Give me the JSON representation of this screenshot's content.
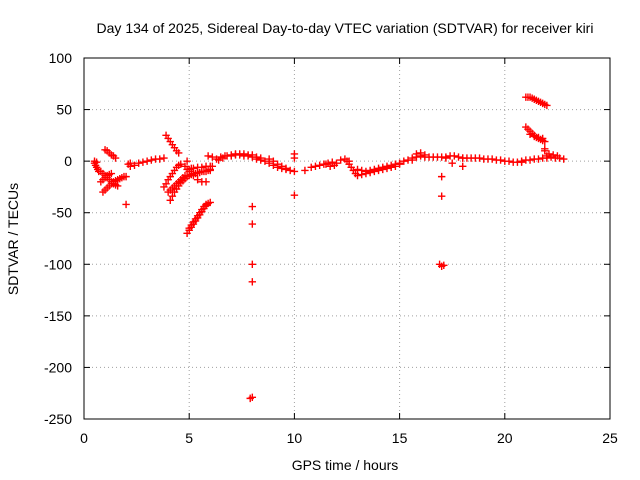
{
  "chart_data": {
    "type": "scatter",
    "title": "Day 134 of 2025, Sidereal Day-to-day VTEC variation (SDTVAR) for receiver kiri",
    "xlabel": "GPS time / hours",
    "ylabel": "SDTVAR / TECUs",
    "xlim": [
      0,
      25
    ],
    "ylim": [
      -250,
      100
    ],
    "xticks": [
      0,
      5,
      10,
      15,
      20,
      25
    ],
    "xtick_labels": [
      "0",
      "5",
      "10",
      "15",
      "20",
      "25"
    ],
    "yticks": [
      -250,
      -200,
      -150,
      -100,
      -50,
      0,
      50,
      100
    ],
    "ytick_labels": [
      "-250",
      "-200",
      "-150",
      "-100",
      "-50",
      "0",
      "50",
      "100"
    ],
    "grid": true,
    "marker": "+",
    "color": "#ff0000",
    "series": [
      {
        "name": "SDTVAR",
        "points": [
          [
            0.5,
            -2
          ],
          [
            0.55,
            -4
          ],
          [
            0.6,
            -6
          ],
          [
            0.65,
            -8
          ],
          [
            0.7,
            -10
          ],
          [
            0.5,
            0
          ],
          [
            0.6,
            -1
          ],
          [
            0.9,
            -30
          ],
          [
            1.0,
            -28
          ],
          [
            1.1,
            -26
          ],
          [
            1.2,
            -24
          ],
          [
            1.3,
            -22
          ],
          [
            1.4,
            -20
          ],
          [
            1.5,
            -19
          ],
          [
            1.6,
            -18
          ],
          [
            1.7,
            -17
          ],
          [
            1.8,
            -16
          ],
          [
            1.9,
            -15
          ],
          [
            2.0,
            -15
          ],
          [
            0.8,
            -20
          ],
          [
            0.9,
            -18
          ],
          [
            1.0,
            -16
          ],
          [
            1.1,
            -14
          ],
          [
            1.2,
            -13
          ],
          [
            1.3,
            -12
          ],
          [
            0.8,
            -10
          ],
          [
            0.9,
            -12
          ],
          [
            1.0,
            -14
          ],
          [
            1.1,
            -16
          ],
          [
            1.2,
            -18
          ],
          [
            1.3,
            -20
          ],
          [
            1.4,
            -22
          ],
          [
            1.5,
            -23
          ],
          [
            1.6,
            -24
          ],
          [
            1.0,
            11
          ],
          [
            1.1,
            10
          ],
          [
            1.2,
            8
          ],
          [
            1.3,
            6
          ],
          [
            1.4,
            5
          ],
          [
            1.5,
            3
          ],
          [
            2.0,
            -42
          ],
          [
            2.1,
            -3
          ],
          [
            2.2,
            -2
          ],
          [
            2.2,
            -5
          ],
          [
            2.4,
            -4
          ],
          [
            2.6,
            -2
          ],
          [
            2.8,
            -1
          ],
          [
            3.0,
            0
          ],
          [
            3.2,
            1
          ],
          [
            3.4,
            2
          ],
          [
            3.6,
            2
          ],
          [
            3.8,
            3
          ],
          [
            3.9,
            25
          ],
          [
            4.0,
            22
          ],
          [
            4.1,
            19
          ],
          [
            4.2,
            16
          ],
          [
            4.3,
            13
          ],
          [
            4.4,
            10
          ],
          [
            4.5,
            8
          ],
          [
            3.8,
            -25
          ],
          [
            3.9,
            -22
          ],
          [
            4.0,
            -18
          ],
          [
            4.1,
            -15
          ],
          [
            4.2,
            -12
          ],
          [
            4.3,
            -9
          ],
          [
            4.4,
            -6
          ],
          [
            4.5,
            -4
          ],
          [
            4.6,
            -3
          ],
          [
            4.0,
            -30
          ],
          [
            4.1,
            -28
          ],
          [
            4.2,
            -26
          ],
          [
            4.3,
            -24
          ],
          [
            4.4,
            -22
          ],
          [
            4.5,
            -20
          ],
          [
            4.6,
            -18
          ],
          [
            4.7,
            -16
          ],
          [
            4.8,
            -14
          ],
          [
            4.1,
            -38
          ],
          [
            4.2,
            -34
          ],
          [
            4.3,
            -30
          ],
          [
            4.4,
            -27
          ],
          [
            4.5,
            -24
          ],
          [
            4.6,
            -21
          ],
          [
            4.7,
            -19
          ],
          [
            4.8,
            -17
          ],
          [
            4.9,
            -15
          ],
          [
            5.0,
            -14
          ],
          [
            5.1,
            -13
          ],
          [
            5.2,
            -12
          ],
          [
            5.3,
            -12
          ],
          [
            5.4,
            -11
          ],
          [
            5.5,
            -11
          ],
          [
            5.6,
            -10
          ],
          [
            5.7,
            -10
          ],
          [
            5.8,
            -10
          ],
          [
            5.9,
            -9
          ],
          [
            6.0,
            -9
          ],
          [
            4.9,
            -8
          ],
          [
            5.0,
            -8
          ],
          [
            5.1,
            -7
          ],
          [
            5.2,
            -7
          ],
          [
            5.4,
            -6
          ],
          [
            5.6,
            -6
          ],
          [
            5.8,
            -5
          ],
          [
            6.0,
            -5
          ],
          [
            4.9,
            0
          ],
          [
            4.8,
            -5
          ],
          [
            5.0,
            -10
          ],
          [
            5.2,
            -14
          ],
          [
            5.4,
            -18
          ],
          [
            5.6,
            -20
          ],
          [
            5.8,
            -20
          ],
          [
            4.9,
            -70
          ],
          [
            5.0,
            -67
          ],
          [
            5.1,
            -64
          ],
          [
            5.2,
            -61
          ],
          [
            5.3,
            -58
          ],
          [
            5.4,
            -55
          ],
          [
            5.5,
            -52
          ],
          [
            5.6,
            -49
          ],
          [
            5.7,
            -46
          ],
          [
            5.8,
            -43
          ],
          [
            5.9,
            -41
          ],
          [
            6.0,
            -40
          ],
          [
            5.0,
            -65
          ],
          [
            5.1,
            -62
          ],
          [
            5.2,
            -59
          ],
          [
            5.3,
            -56
          ],
          [
            5.4,
            -53
          ],
          [
            5.5,
            -50
          ],
          [
            5.6,
            -47
          ],
          [
            5.7,
            -44
          ],
          [
            5.8,
            -42
          ],
          [
            6.0,
            -8
          ],
          [
            6.1,
            -5
          ],
          [
            5.9,
            5
          ],
          [
            6.1,
            4
          ],
          [
            6.3,
            2
          ],
          [
            6.5,
            4
          ],
          [
            6.7,
            5
          ],
          [
            6.4,
            1
          ],
          [
            6.6,
            3
          ],
          [
            6.8,
            5
          ],
          [
            7.0,
            6
          ],
          [
            7.2,
            7
          ],
          [
            7.4,
            7
          ],
          [
            7.6,
            7
          ],
          [
            7.8,
            6
          ],
          [
            8.0,
            6
          ],
          [
            7.0,
            5
          ],
          [
            7.2,
            6
          ],
          [
            7.4,
            6
          ],
          [
            7.6,
            5
          ],
          [
            7.8,
            5
          ],
          [
            8.0,
            4
          ],
          [
            8.2,
            4
          ],
          [
            8.4,
            3
          ],
          [
            8.0,
            -44
          ],
          [
            8.0,
            -61
          ],
          [
            8.0,
            -100
          ],
          [
            8.0,
            -117
          ],
          [
            7.9,
            -230
          ],
          [
            8.0,
            -229
          ],
          [
            8.2,
            2
          ],
          [
            8.4,
            1
          ],
          [
            8.6,
            0
          ],
          [
            8.8,
            -2
          ],
          [
            9.0,
            -4
          ],
          [
            9.2,
            -6
          ],
          [
            9.4,
            -7
          ],
          [
            9.6,
            -8
          ],
          [
            9.8,
            -9
          ],
          [
            10.0,
            -10
          ],
          [
            8.8,
            2
          ],
          [
            9.0,
            0
          ],
          [
            9.2,
            -3
          ],
          [
            9.4,
            -5
          ],
          [
            9.6,
            -7
          ],
          [
            10.0,
            -33
          ],
          [
            10.0,
            3
          ],
          [
            10.0,
            7
          ],
          [
            10.5,
            -9
          ],
          [
            10.8,
            -6
          ],
          [
            11.0,
            -5
          ],
          [
            11.2,
            -4
          ],
          [
            11.4,
            -3
          ],
          [
            11.6,
            -2
          ],
          [
            11.8,
            -1
          ],
          [
            11.5,
            -3
          ],
          [
            11.7,
            -5
          ],
          [
            11.9,
            -4
          ],
          [
            12.0,
            -2
          ],
          [
            12.2,
            1
          ],
          [
            12.4,
            2
          ],
          [
            12.6,
            0
          ],
          [
            12.5,
            0
          ],
          [
            12.6,
            -3
          ],
          [
            12.7,
            -6
          ],
          [
            12.8,
            -9
          ],
          [
            12.9,
            -12
          ],
          [
            13.0,
            -14
          ],
          [
            13.2,
            -13
          ],
          [
            13.0,
            -8
          ],
          [
            13.2,
            -9
          ],
          [
            13.4,
            -10
          ],
          [
            13.6,
            -9
          ],
          [
            13.8,
            -8
          ],
          [
            14.0,
            -7
          ],
          [
            14.2,
            -6
          ],
          [
            14.4,
            -5
          ],
          [
            14.6,
            -4
          ],
          [
            14.8,
            -3
          ],
          [
            13.4,
            -12
          ],
          [
            13.6,
            -11
          ],
          [
            13.8,
            -10
          ],
          [
            14.0,
            -9
          ],
          [
            14.2,
            -8
          ],
          [
            14.4,
            -7
          ],
          [
            14.6,
            -6
          ],
          [
            14.8,
            -5
          ],
          [
            15.0,
            -3
          ],
          [
            15.0,
            -2
          ],
          [
            15.2,
            0
          ],
          [
            15.4,
            1
          ],
          [
            15.6,
            3
          ],
          [
            15.8,
            4
          ],
          [
            16.0,
            5
          ],
          [
            16.2,
            6
          ],
          [
            15.6,
            1
          ],
          [
            15.8,
            7
          ],
          [
            16.0,
            8
          ],
          [
            16.2,
            4
          ],
          [
            16.4,
            4
          ],
          [
            16.6,
            4
          ],
          [
            16.8,
            4
          ],
          [
            17.0,
            4
          ],
          [
            17.2,
            3
          ],
          [
            17.0,
            -15
          ],
          [
            17.0,
            -34
          ],
          [
            16.9,
            -100
          ],
          [
            17.0,
            -102
          ],
          [
            17.1,
            -101
          ],
          [
            17.2,
            4
          ],
          [
            17.4,
            5
          ],
          [
            17.6,
            5
          ],
          [
            17.8,
            4
          ],
          [
            18.0,
            3
          ],
          [
            17.5,
            -2
          ],
          [
            18.0,
            -5
          ],
          [
            18.0,
            3
          ],
          [
            18.2,
            3
          ],
          [
            18.4,
            3
          ],
          [
            18.6,
            3
          ],
          [
            18.8,
            3
          ],
          [
            19.0,
            2
          ],
          [
            19.2,
            2
          ],
          [
            19.4,
            2
          ],
          [
            19.6,
            1
          ],
          [
            19.8,
            1
          ],
          [
            20.0,
            0
          ],
          [
            20.2,
            0
          ],
          [
            20.4,
            -1
          ],
          [
            20.6,
            -1
          ],
          [
            20.8,
            -1
          ],
          [
            20.8,
            0
          ],
          [
            21.0,
            1
          ],
          [
            21.2,
            1
          ],
          [
            21.4,
            2
          ],
          [
            21.6,
            2
          ],
          [
            21.8,
            3
          ],
          [
            22.0,
            3
          ],
          [
            21.0,
            62
          ],
          [
            21.1,
            62
          ],
          [
            21.2,
            62
          ],
          [
            21.3,
            61
          ],
          [
            21.4,
            60
          ],
          [
            21.5,
            59
          ],
          [
            21.6,
            58
          ],
          [
            21.7,
            57
          ],
          [
            21.8,
            56
          ],
          [
            21.9,
            55
          ],
          [
            22.0,
            54
          ],
          [
            21.0,
            33
          ],
          [
            21.1,
            31
          ],
          [
            21.2,
            29
          ],
          [
            21.3,
            27
          ],
          [
            21.4,
            25
          ],
          [
            21.5,
            23
          ],
          [
            21.6,
            22
          ],
          [
            21.7,
            21
          ],
          [
            21.8,
            20
          ],
          [
            21.9,
            19
          ],
          [
            21.2,
            26
          ],
          [
            21.4,
            24
          ],
          [
            21.6,
            23
          ],
          [
            21.8,
            22
          ],
          [
            21.9,
            12
          ],
          [
            21.9,
            10
          ],
          [
            22.0,
            5
          ],
          [
            22.2,
            4
          ],
          [
            22.4,
            3
          ],
          [
            22.6,
            3
          ],
          [
            22.8,
            2
          ],
          [
            22.1,
            7
          ],
          [
            22.3,
            6
          ],
          [
            22.5,
            5
          ]
        ]
      }
    ]
  }
}
